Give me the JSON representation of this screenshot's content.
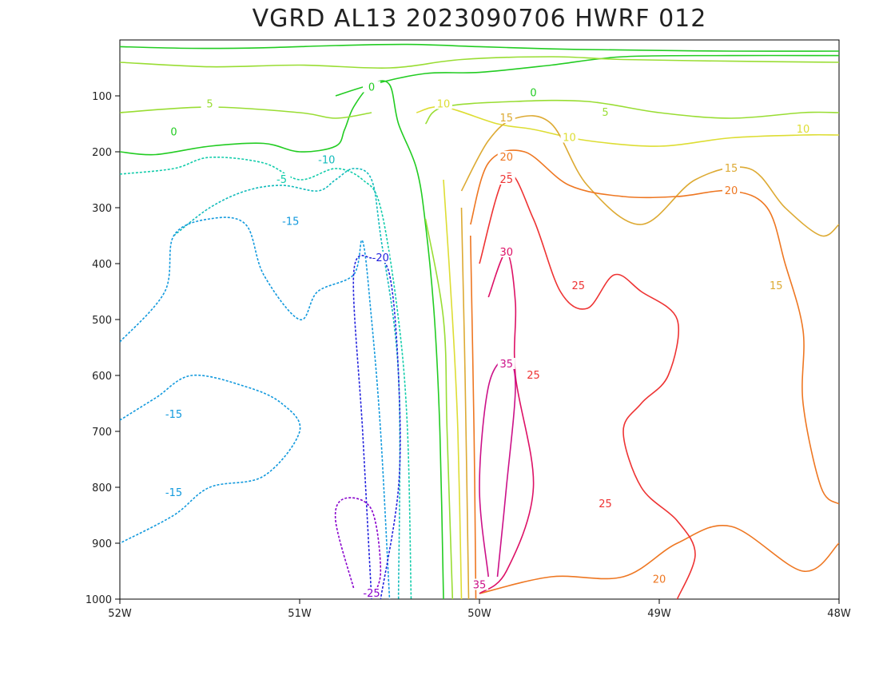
{
  "chart_data": {
    "type": "contour",
    "title": "VGRD AL13 2023090706 HWRF 012",
    "xlabel": "",
    "ylabel": "",
    "x_ticks": [
      "52W",
      "51W",
      "50W",
      "49W",
      "48W"
    ],
    "x_range": [
      -52,
      -48
    ],
    "y_ticks": [
      "100",
      "200",
      "300",
      "400",
      "500",
      "600",
      "700",
      "800",
      "900",
      "1000"
    ],
    "y_range": [
      0,
      1000
    ],
    "y_inverted": true,
    "contour_interval": 5,
    "negative_contours_dashed": true,
    "grid": false,
    "colors": {
      "-25": "#8800cc",
      "-20": "#2222dd",
      "-15": "#1199dd",
      "-10": "#11bbbb",
      "-5": "#11ccaa",
      "0": "#22cc22",
      "5": "#99dd33",
      "10": "#dddd33",
      "15": "#ddaa33",
      "20": "#ee7722",
      "25": "#ee3333",
      "30": "#dd1166",
      "35": "#cc1188"
    },
    "contours": [
      {
        "level": 0,
        "points": [
          [
            -52,
            200
          ],
          [
            -51.8,
            205
          ],
          [
            -51.5,
            190
          ],
          [
            -51.2,
            185
          ],
          [
            -51,
            200
          ],
          [
            -50.8,
            190
          ],
          [
            -50.75,
            160
          ],
          [
            -50.7,
            120
          ],
          [
            -50.6,
            80
          ],
          [
            -50.5,
            80
          ],
          [
            -50.45,
            150
          ],
          [
            -50.35,
            230
          ],
          [
            -50.3,
            330
          ],
          [
            -50.25,
            500
          ],
          [
            -50.22,
            700
          ],
          [
            -50.2,
            1000
          ]
        ]
      },
      {
        "level": 0,
        "points": [
          [
            -50.8,
            100
          ],
          [
            -50.6,
            80
          ],
          [
            -50.3,
            60
          ],
          [
            -50,
            58
          ],
          [
            -49.6,
            45
          ],
          [
            -49.2,
            30
          ],
          [
            -48.6,
            28
          ],
          [
            -48,
            28
          ]
        ]
      },
      {
        "level": 0,
        "points": [
          [
            -52,
            12
          ],
          [
            -51.6,
            15
          ],
          [
            -51.2,
            14
          ],
          [
            -50.8,
            10
          ],
          [
            -50.4,
            8
          ],
          [
            -50,
            12
          ],
          [
            -49.6,
            16
          ],
          [
            -49.2,
            18
          ],
          [
            -48.6,
            20
          ],
          [
            -48,
            20
          ]
        ]
      },
      {
        "level": 5,
        "points": [
          [
            -52,
            130
          ],
          [
            -51.5,
            120
          ],
          [
            -51,
            130
          ],
          [
            -50.8,
            140
          ],
          [
            -50.6,
            130
          ]
        ]
      },
      {
        "level": 5,
        "points": [
          [
            -50.3,
            150
          ],
          [
            -50.2,
            120
          ],
          [
            -49.8,
            110
          ],
          [
            -49.4,
            110
          ],
          [
            -49,
            130
          ],
          [
            -48.6,
            140
          ],
          [
            -48.2,
            130
          ],
          [
            -48,
            130
          ]
        ]
      },
      {
        "level": 5,
        "points": [
          [
            -52,
            40
          ],
          [
            -51.5,
            48
          ],
          [
            -51,
            45
          ],
          [
            -50.5,
            50
          ],
          [
            -50.1,
            35
          ],
          [
            -49.6,
            30
          ],
          [
            -49.2,
            35
          ],
          [
            -48.6,
            38
          ],
          [
            -48,
            40
          ]
        ]
      },
      {
        "level": 5,
        "points": [
          [
            -50.3,
            320
          ],
          [
            -50.2,
            500
          ],
          [
            -50.18,
            700
          ],
          [
            -50.15,
            1000
          ]
        ]
      },
      {
        "level": 10,
        "points": [
          [
            -50.35,
            130
          ],
          [
            -50.2,
            120
          ],
          [
            -49.9,
            150
          ],
          [
            -49.7,
            160
          ],
          [
            -49.4,
            180
          ],
          [
            -49,
            190
          ],
          [
            -48.6,
            175
          ],
          [
            -48.2,
            170
          ],
          [
            -48,
            170
          ]
        ]
      },
      {
        "level": 10,
        "points": [
          [
            -50.2,
            250
          ],
          [
            -50.15,
            500
          ],
          [
            -50.12,
            700
          ],
          [
            -50.1,
            1000
          ]
        ]
      },
      {
        "level": 15,
        "points": [
          [
            -50.1,
            270
          ],
          [
            -49.95,
            180
          ],
          [
            -49.8,
            140
          ],
          [
            -49.6,
            150
          ],
          [
            -49.4,
            260
          ],
          [
            -49.1,
            330
          ],
          [
            -48.8,
            250
          ],
          [
            -48.5,
            230
          ],
          [
            -48.3,
            300
          ],
          [
            -48.1,
            350
          ],
          [
            -48,
            330
          ]
        ]
      },
      {
        "level": 15,
        "points": [
          [
            -50.1,
            300
          ],
          [
            -50.08,
            600
          ],
          [
            -50.06,
            1000
          ]
        ]
      },
      {
        "level": 20,
        "points": [
          [
            -50.05,
            330
          ],
          [
            -49.95,
            220
          ],
          [
            -49.75,
            200
          ],
          [
            -49.5,
            260
          ],
          [
            -49.2,
            280
          ],
          [
            -48.9,
            280
          ],
          [
            -48.6,
            270
          ],
          [
            -48.4,
            300
          ],
          [
            -48.3,
            400
          ],
          [
            -48.2,
            520
          ],
          [
            -48.2,
            650
          ],
          [
            -48.1,
            800
          ],
          [
            -48,
            830
          ]
        ]
      },
      {
        "level": 20,
        "points": [
          [
            -50,
            990
          ],
          [
            -49.6,
            960
          ],
          [
            -49.2,
            960
          ],
          [
            -48.9,
            900
          ],
          [
            -48.6,
            870
          ],
          [
            -48.2,
            950
          ],
          [
            -48,
            900
          ]
        ]
      },
      {
        "level": 20,
        "points": [
          [
            -50.05,
            350
          ],
          [
            -50.03,
            700
          ],
          [
            -50.02,
            1000
          ]
        ]
      },
      {
        "level": 25,
        "points": [
          [
            -50,
            400
          ],
          [
            -49.85,
            240
          ],
          [
            -49.7,
            320
          ],
          [
            -49.55,
            450
          ],
          [
            -49.4,
            480
          ],
          [
            -49.25,
            420
          ],
          [
            -49.1,
            450
          ],
          [
            -48.9,
            500
          ],
          [
            -48.95,
            600
          ],
          [
            -49.1,
            650
          ],
          [
            -49.2,
            700
          ],
          [
            -49.1,
            800
          ],
          [
            -48.9,
            860
          ],
          [
            -48.8,
            920
          ],
          [
            -48.9,
            1000
          ]
        ]
      },
      {
        "level": 30,
        "points": [
          [
            -49.95,
            460
          ],
          [
            -49.85,
            380
          ],
          [
            -49.8,
            470
          ],
          [
            -49.8,
            600
          ],
          [
            -49.7,
            800
          ],
          [
            -49.85,
            950
          ],
          [
            -50,
            990
          ]
        ]
      },
      {
        "level": 35,
        "points": [
          [
            -49.95,
            960
          ],
          [
            -50,
            800
          ],
          [
            -49.95,
            620
          ],
          [
            -49.85,
            570
          ],
          [
            -49.8,
            620
          ],
          [
            -49.85,
            800
          ],
          [
            -49.9,
            960
          ]
        ]
      },
      {
        "level": -5,
        "points": [
          [
            -52,
            240
          ],
          [
            -51.7,
            230
          ],
          [
            -51.5,
            210
          ],
          [
            -51.2,
            220
          ],
          [
            -51,
            250
          ],
          [
            -50.8,
            230
          ],
          [
            -50.65,
            250
          ],
          [
            -50.55,
            300
          ],
          [
            -50.45,
            500
          ],
          [
            -50.4,
            700
          ],
          [
            -50.38,
            1000
          ]
        ]
      },
      {
        "level": -10,
        "points": [
          [
            -51.7,
            350
          ],
          [
            -51.5,
            300
          ],
          [
            -51.3,
            270
          ],
          [
            -51.1,
            260
          ],
          [
            -50.9,
            270
          ],
          [
            -50.8,
            250
          ],
          [
            -50.7,
            230
          ],
          [
            -50.6,
            250
          ],
          [
            -50.55,
            350
          ],
          [
            -50.45,
            600
          ],
          [
            -50.45,
            1000
          ]
        ]
      },
      {
        "level": -15,
        "points": [
          [
            -52,
            540
          ],
          [
            -51.75,
            450
          ],
          [
            -51.7,
            350
          ],
          [
            -51.5,
            320
          ],
          [
            -51.3,
            330
          ],
          [
            -51.2,
            420
          ],
          [
            -51,
            500
          ],
          [
            -50.9,
            450
          ],
          [
            -50.7,
            420
          ],
          [
            -50.65,
            360
          ],
          [
            -50.6,
            500
          ],
          [
            -50.55,
            700
          ],
          [
            -50.5,
            1000
          ]
        ]
      },
      {
        "level": -15,
        "points": [
          [
            -52,
            680
          ],
          [
            -51.8,
            640
          ],
          [
            -51.6,
            600
          ],
          [
            -51.3,
            620
          ],
          [
            -51.1,
            650
          ],
          [
            -51,
            700
          ],
          [
            -51.2,
            780
          ],
          [
            -51.5,
            800
          ],
          [
            -51.7,
            850
          ],
          [
            -52,
            900
          ]
        ]
      },
      {
        "level": -20,
        "points": [
          [
            -50.6,
            1000
          ],
          [
            -50.65,
            700
          ],
          [
            -50.7,
            420
          ],
          [
            -50.6,
            390
          ],
          [
            -50.5,
            420
          ],
          [
            -50.45,
            600
          ],
          [
            -50.45,
            800
          ],
          [
            -50.55,
            1000
          ]
        ]
      },
      {
        "level": -25,
        "points": [
          [
            -50.7,
            980
          ],
          [
            -50.8,
            860
          ],
          [
            -50.75,
            820
          ],
          [
            -50.6,
            840
          ],
          [
            -50.55,
            950
          ],
          [
            -50.6,
            1000
          ]
        ]
      }
    ],
    "labels": [
      {
        "level": 0,
        "text": "0",
        "at": [
          -51.7,
          165
        ]
      },
      {
        "level": 0,
        "text": "0",
        "at": [
          -50.6,
          85
        ]
      },
      {
        "level": 0,
        "text": "0",
        "at": [
          -49.7,
          95
        ]
      },
      {
        "level": 5,
        "text": "5",
        "at": [
          -51.5,
          115
        ]
      },
      {
        "level": 5,
        "text": "5",
        "at": [
          -49.3,
          130
        ]
      },
      {
        "level": 10,
        "text": "10",
        "at": [
          -50.2,
          115
        ]
      },
      {
        "level": 10,
        "text": "10",
        "at": [
          -49.5,
          175
        ]
      },
      {
        "level": 10,
        "text": "10",
        "at": [
          -48.2,
          160
        ]
      },
      {
        "level": 15,
        "text": "15",
        "at": [
          -49.85,
          140
        ]
      },
      {
        "level": 15,
        "text": "15",
        "at": [
          -48.6,
          230
        ]
      },
      {
        "level": 15,
        "text": "15",
        "at": [
          -48.35,
          440
        ]
      },
      {
        "level": 20,
        "text": "20",
        "at": [
          -49.85,
          210
        ]
      },
      {
        "level": 20,
        "text": "20",
        "at": [
          -48.6,
          270
        ]
      },
      {
        "level": 20,
        "text": "20",
        "at": [
          -49,
          965
        ]
      },
      {
        "level": 25,
        "text": "25",
        "at": [
          -49.85,
          250
        ]
      },
      {
        "level": 25,
        "text": "25",
        "at": [
          -49.45,
          440
        ]
      },
      {
        "level": 25,
        "text": "25",
        "at": [
          -49.7,
          600
        ]
      },
      {
        "level": 25,
        "text": "25",
        "at": [
          -49.3,
          830
        ]
      },
      {
        "level": 30,
        "text": "30",
        "at": [
          -49.85,
          380
        ]
      },
      {
        "level": 35,
        "text": "35",
        "at": [
          -49.85,
          580
        ]
      },
      {
        "level": 35,
        "text": "35",
        "at": [
          -50,
          975
        ]
      },
      {
        "level": -5,
        "text": "-5",
        "at": [
          -51.1,
          250
        ]
      },
      {
        "level": -10,
        "text": "-10",
        "at": [
          -50.85,
          215
        ]
      },
      {
        "level": -15,
        "text": "-15",
        "at": [
          -51.05,
          325
        ]
      },
      {
        "level": -15,
        "text": "-15",
        "at": [
          -51.7,
          670
        ]
      },
      {
        "level": -15,
        "text": "-15",
        "at": [
          -51.7,
          810
        ]
      },
      {
        "level": -20,
        "text": "-20",
        "at": [
          -50.55,
          390
        ]
      },
      {
        "level": -25,
        "text": "-25",
        "at": [
          -50.6,
          990
        ]
      }
    ]
  }
}
